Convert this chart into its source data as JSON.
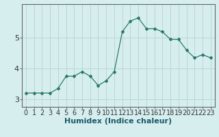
{
  "x": [
    0,
    1,
    2,
    3,
    4,
    5,
    6,
    7,
    8,
    9,
    10,
    11,
    12,
    13,
    14,
    15,
    16,
    17,
    18,
    19,
    20,
    21,
    22,
    23
  ],
  "y": [
    3.2,
    3.2,
    3.2,
    3.2,
    3.35,
    3.75,
    3.75,
    3.9,
    3.75,
    3.45,
    3.6,
    3.9,
    5.2,
    5.55,
    5.65,
    5.3,
    5.3,
    5.2,
    4.95,
    4.95,
    4.6,
    4.35,
    4.45,
    4.35
  ],
  "xlabel": "Humidex (Indice chaleur)",
  "bg_color": "#d6eeee",
  "line_color": "#2a7a6a",
  "marker_color": "#2a7a6a",
  "grid_color": "#b8d8d0",
  "ylim": [
    2.75,
    6.1
  ],
  "xlim": [
    -0.5,
    23.5
  ],
  "yticks": [
    3,
    4,
    5
  ],
  "xticks": [
    0,
    1,
    2,
    3,
    4,
    5,
    6,
    7,
    8,
    9,
    10,
    11,
    12,
    13,
    14,
    15,
    16,
    17,
    18,
    19,
    20,
    21,
    22,
    23
  ],
  "xlabel_color": "#1a5a6a",
  "tick_fontsize": 7,
  "xlabel_fontsize": 8
}
